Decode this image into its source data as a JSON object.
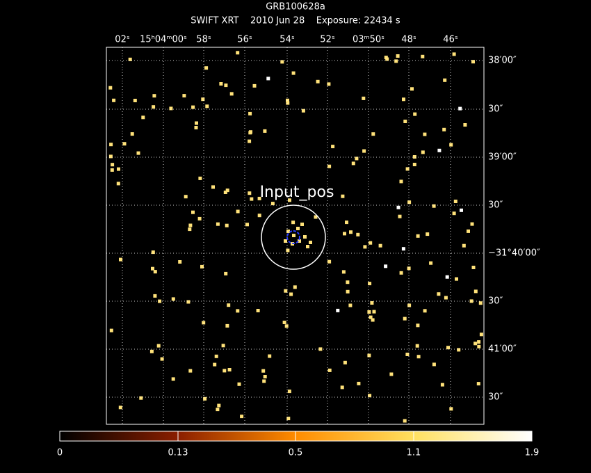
{
  "header": {
    "title": "GRB100628a",
    "subtitle": "SWIFT XRT    2010 Jun 28    Exposure: 22434 s"
  },
  "top_axis": {
    "labels": [
      "02ˢ",
      "15ʰ04ᵐ00ˢ",
      "58ˢ",
      "56ˢ",
      "54ˢ",
      "52ˢ",
      "03ᵐ50ˢ",
      "48ˢ",
      "46ˢ"
    ]
  },
  "right_axis": {
    "labels": [
      "38′00″",
      "30″",
      "39′00″",
      "30″",
      "−31°40′00″",
      "30″",
      "41′00″",
      "30″"
    ]
  },
  "region": {
    "label": "Input_pos"
  },
  "colorbar": {
    "labels": [
      "0",
      "0.13",
      "0.5",
      "1.1",
      "1.9"
    ]
  }
}
